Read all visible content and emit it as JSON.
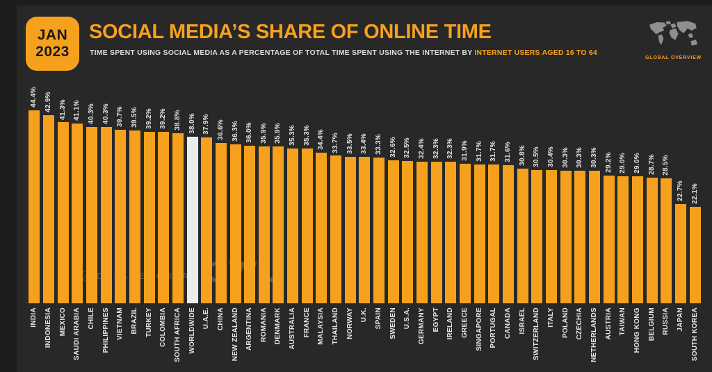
{
  "header": {
    "date_badge": {
      "line1": "JAN",
      "line2": "2023"
    },
    "title": "SOCIAL MEDIA’S SHARE OF ONLINE TIME",
    "subtitle_plain": "TIME SPENT USING SOCIAL MEDIA AS A PERCENTAGE OF TOTAL TIME SPENT USING THE INTERNET BY ",
    "subtitle_highlight": "INTERNET USERS AGED 16 TO 64",
    "global_overview_label": "GLOBAL OVERVIEW"
  },
  "watermarks": {
    "datareportal": "DATAREPORTAL",
    "gwi": "GWI."
  },
  "colors": {
    "accent_orange": "#F6A11E",
    "bar_orange": "#F6A11E",
    "highlight_bar": "#ECECEC",
    "panel_background": "#282828",
    "outer_background": "#1d1d1d",
    "label_text": "#E2E2E2",
    "badge_text": "#191919",
    "map_gray": "#8F8F8F"
  },
  "chart_data": {
    "type": "bar",
    "title": "SOCIAL MEDIA'S SHARE OF ONLINE TIME",
    "subtitle": "TIME SPENT USING SOCIAL MEDIA AS A PERCENTAGE OF TOTAL TIME SPENT USING THE INTERNET BY INTERNET USERS AGED 16 TO 64",
    "unit": "%",
    "ylim": [
      0,
      45
    ],
    "grid": false,
    "legend": "none",
    "bar_color": "#F6A11E",
    "highlight_category": "WORLDWIDE",
    "highlight_color": "#ECECEC",
    "categories": [
      "INDIA",
      "INDONESIA",
      "MEXICO",
      "SAUDI ARABIA",
      "CHILE",
      "PHILIPPINES",
      "VIETNAM",
      "BRAZIL",
      "TURKEY",
      "COLOMBIA",
      "SOUTH AFRICA",
      "WORLDWIDE",
      "U.A.E.",
      "CHINA",
      "NEW ZEALAND",
      "ARGENTINA",
      "ROMANIA",
      "DENMARK",
      "AUSTRALIA",
      "FRANCE",
      "MALAYSIA",
      "THAILAND",
      "NORWAY",
      "U.K.",
      "SPAIN",
      "SWEDEN",
      "U.S.A.",
      "GERMANY",
      "EGYPT",
      "IRELAND",
      "GREECE",
      "SINGAPORE",
      "PORTUGAL",
      "CANADA",
      "ISRAEL",
      "SWITZERLAND",
      "ITALY",
      "POLAND",
      "CZECHIA",
      "NETHERLANDS",
      "AUSTRIA",
      "TAIWAN",
      "HONG KONG",
      "BELGIUM",
      "RUSSIA",
      "JAPAN",
      "SOUTH KOREA"
    ],
    "values": [
      44.4,
      42.9,
      41.3,
      41.1,
      40.3,
      40.3,
      39.7,
      39.5,
      39.2,
      39.2,
      38.8,
      38.0,
      37.9,
      36.6,
      36.3,
      36.0,
      35.9,
      35.9,
      35.3,
      35.3,
      34.4,
      33.7,
      33.5,
      33.4,
      33.3,
      32.6,
      32.5,
      32.4,
      32.3,
      32.3,
      31.9,
      31.7,
      31.7,
      31.6,
      30.8,
      30.5,
      30.4,
      30.3,
      30.3,
      30.3,
      29.2,
      29.0,
      29.0,
      28.7,
      28.5,
      22.7,
      22.1
    ],
    "display_values": [
      "44.4%",
      "42.9%",
      "41.3%",
      "41.1%",
      "40.3%",
      "40.3%",
      "39.7%",
      "39.5%",
      "39.2%",
      "39.2%",
      "38.8%",
      "38.0%",
      "37.9%",
      "36.6%",
      "36.3%",
      "36.0%",
      "35.9%",
      "35.9%",
      "35.3%",
      "35.3%",
      "34.4%",
      "33.7%",
      "33.5%",
      "33.4%",
      "33.3%",
      "32.6%",
      "32.5%",
      "32.4%",
      "32.3%",
      "32.3%",
      "31.9%",
      "31.7%",
      "31.7%",
      "31.6%",
      "30.8%",
      "30.5%",
      "30.4%",
      "30.3%",
      "30.3%",
      "30.3%",
      "29.2%",
      "29.0%",
      "29.0%",
      "28.7%",
      "28.5%",
      "22.7%",
      "22.1%"
    ]
  }
}
